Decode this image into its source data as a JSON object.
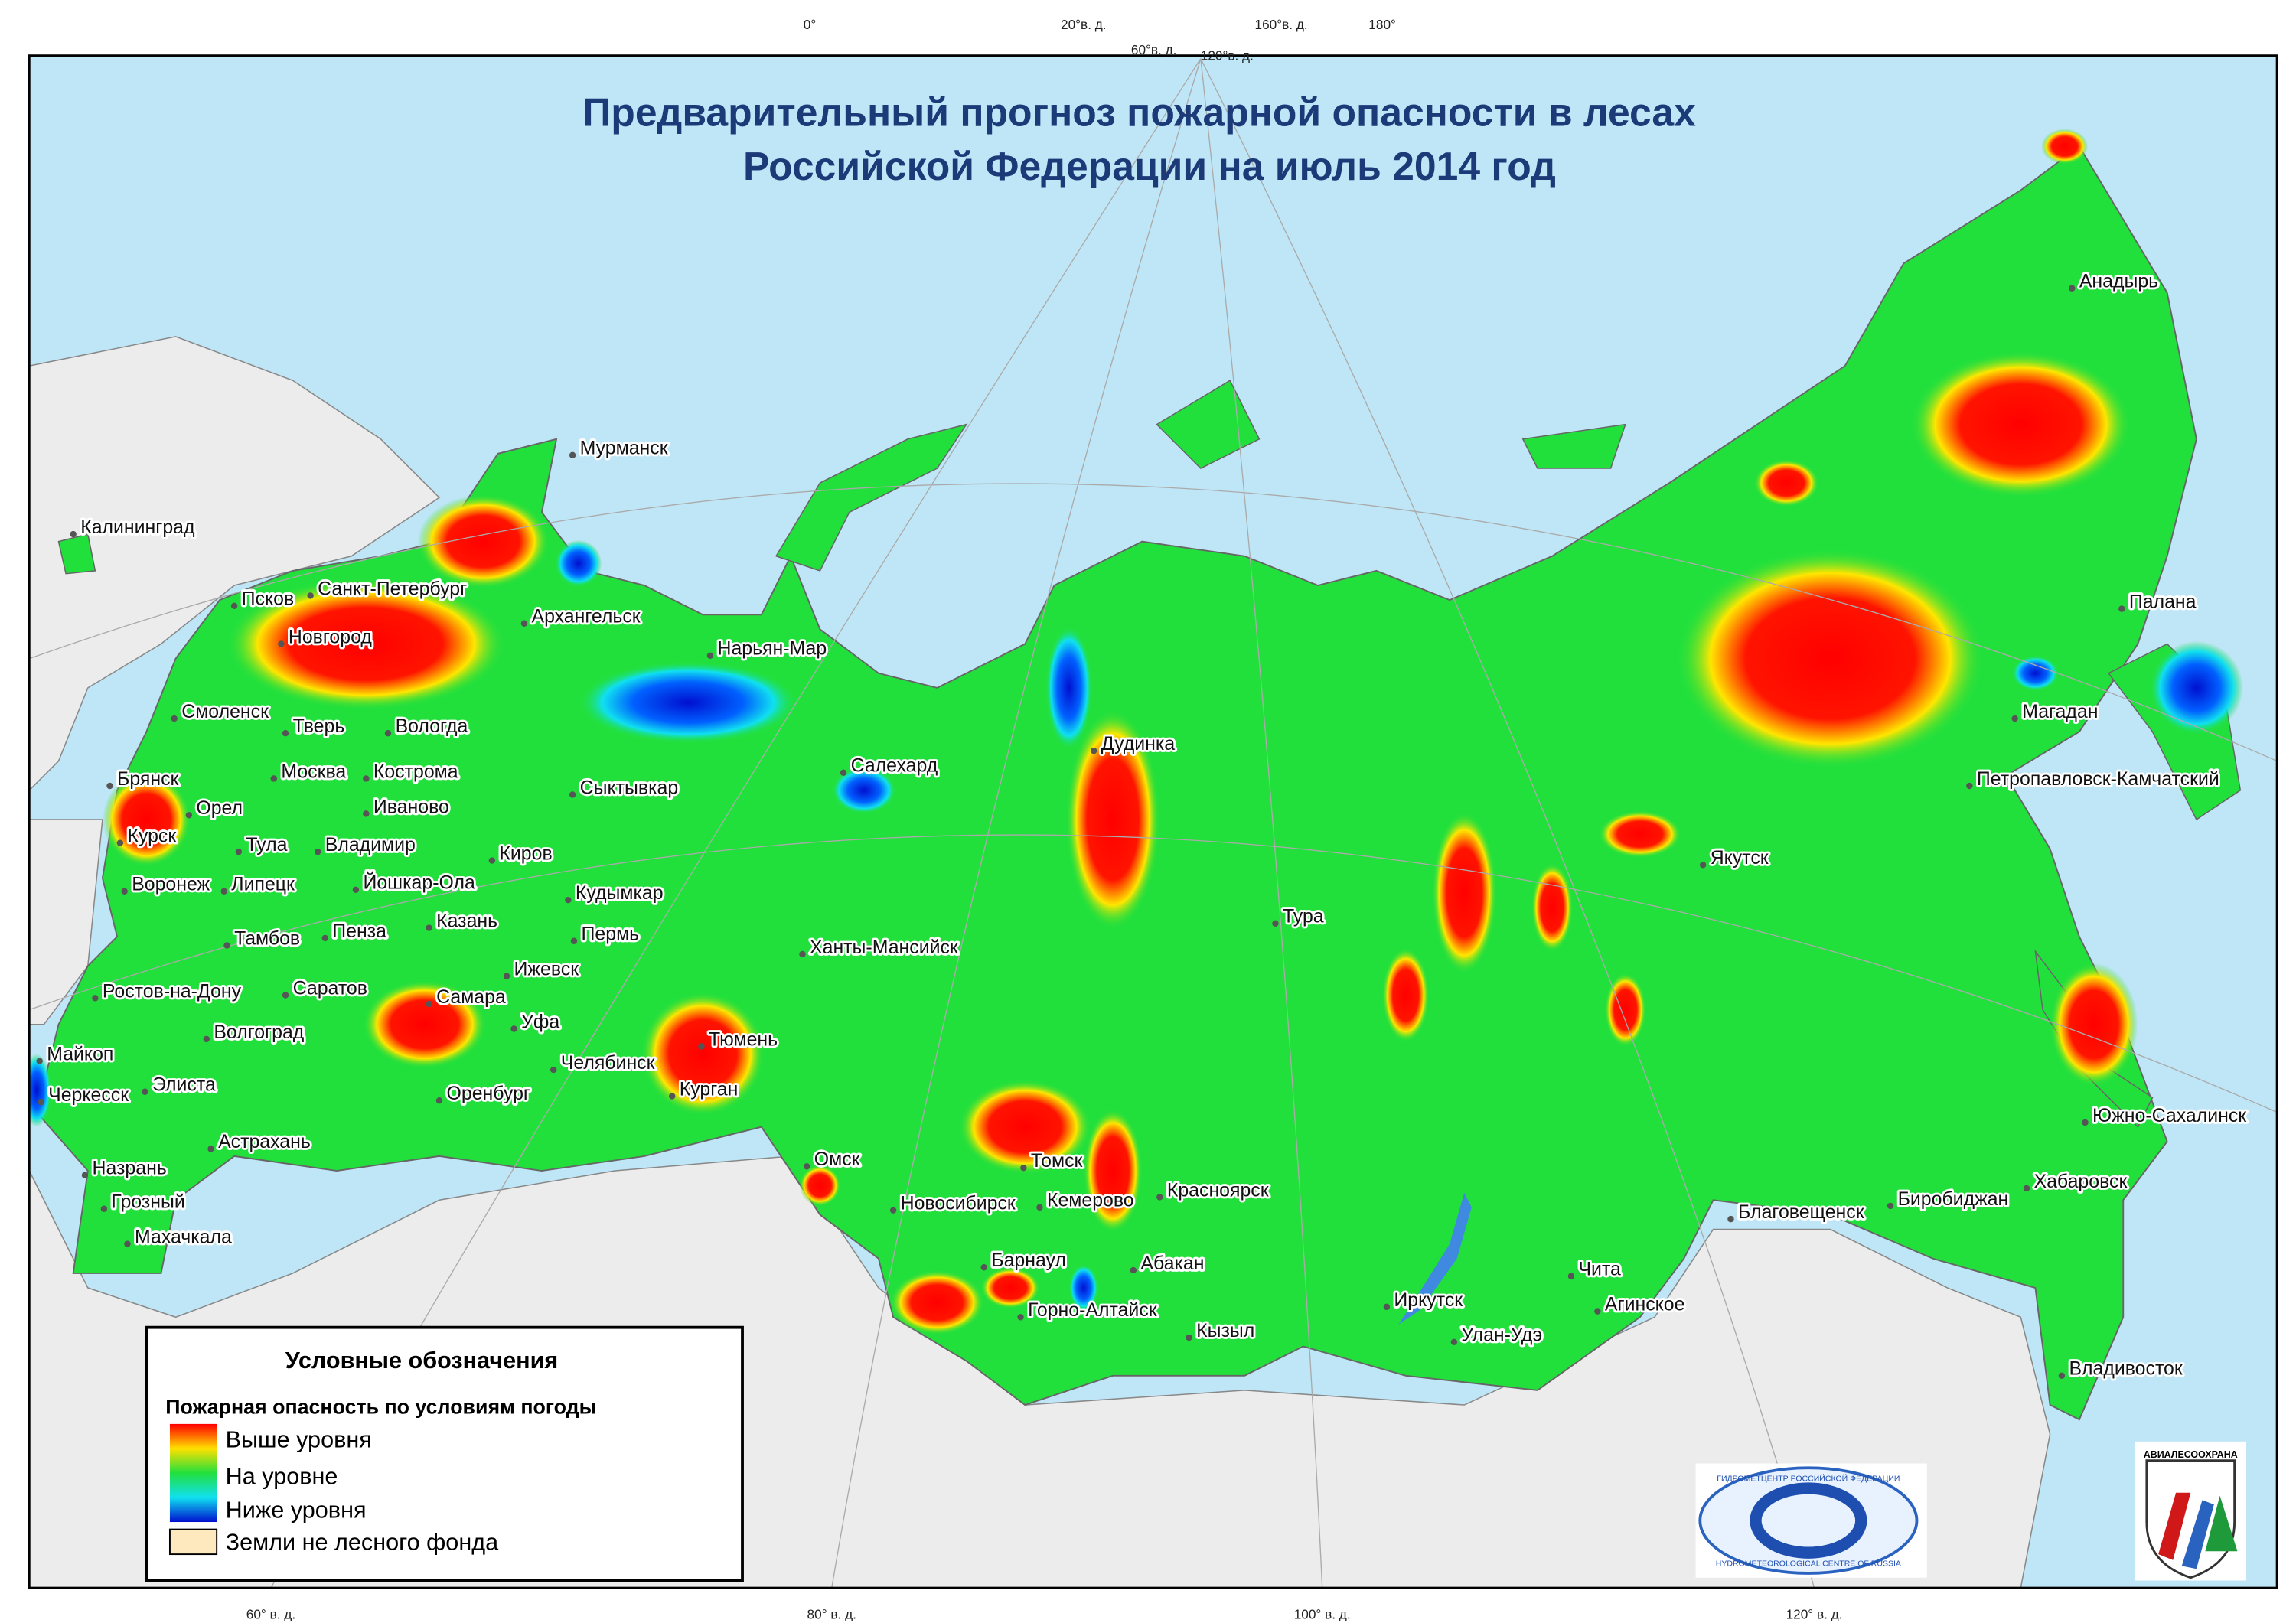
{
  "title": [
    "Предварительный прогноз пожарной опасности в лесах",
    "Российской Федерации на июль  2014 год"
  ],
  "graticule_labels": [
    "0°",
    "20°в. д.",
    "160°в. д.",
    "180°",
    "60°в. д.",
    "120°в. д.",
    "60° в. д.",
    "80° в. д.",
    "100° в. д.",
    "120° в. д."
  ],
  "cities": [
    "Мурманск",
    "Калининград",
    "Псков",
    "Санкт-Петербург",
    "Архангельск",
    "Новгород",
    "Нарьян-Мар",
    "Смоленск",
    "Тверь",
    "Вологда",
    "Дудинка",
    "Салехард",
    "Брянск",
    "Москва",
    "Кострома",
    "Сыктывкар",
    "Орел",
    "Иваново",
    "Курск",
    "Тула",
    "Владимир",
    "Киров",
    "Якутск",
    "Воронеж",
    "Липецк",
    "Йошкар-Ола",
    "Кудымкар",
    "Тура",
    "Тамбов",
    "Пенза",
    "Казань",
    "Пермь",
    "Ханты-Мансийск",
    "Ижевск",
    "Ростов-на-Дону",
    "Саратов",
    "Самара",
    "Уфа",
    "Волгоград",
    "Тюмень",
    "Майкоп",
    "Челябинск",
    "Элиста",
    "Черкесск",
    "Курган",
    "Оренбург",
    "Астрахань",
    "Омск",
    "Томск",
    "Назрань",
    "Красноярск",
    "Новосибирск",
    "Кемерово",
    "Грозный",
    "Благовещенск",
    "Биробиджан",
    "Хабаровск",
    "Махачкала",
    "Барнаул",
    "Абакан",
    "Чита",
    "Горно-Алтайск",
    "Иркутск",
    "Агинское",
    "Кызыл",
    "Улан-Удэ",
    "Владивосток",
    "Анадырь",
    "Палана",
    "Магадан",
    "Петропавловск-Камчатский",
    "Южно-Сахалинск"
  ],
  "legend": {
    "title": "Условные обозначения",
    "subtitle": "Пожарная опасность по условиям погоды",
    "items": [
      "Выше уровня",
      "На уровне",
      "Ниже уровня",
      "Земли не лесного фонда"
    ]
  },
  "logos": {
    "hydromet_ru": "ГИДРОМЕТЦЕНТР РОССИЙСКОЙ ФЕДЕРАЦИИ",
    "hydromet_en": "HYDROMETEOROLOGICAL CENTRE OF RUSSIA",
    "avialesookhrana": "АВИАЛЕСООХРАНА"
  }
}
